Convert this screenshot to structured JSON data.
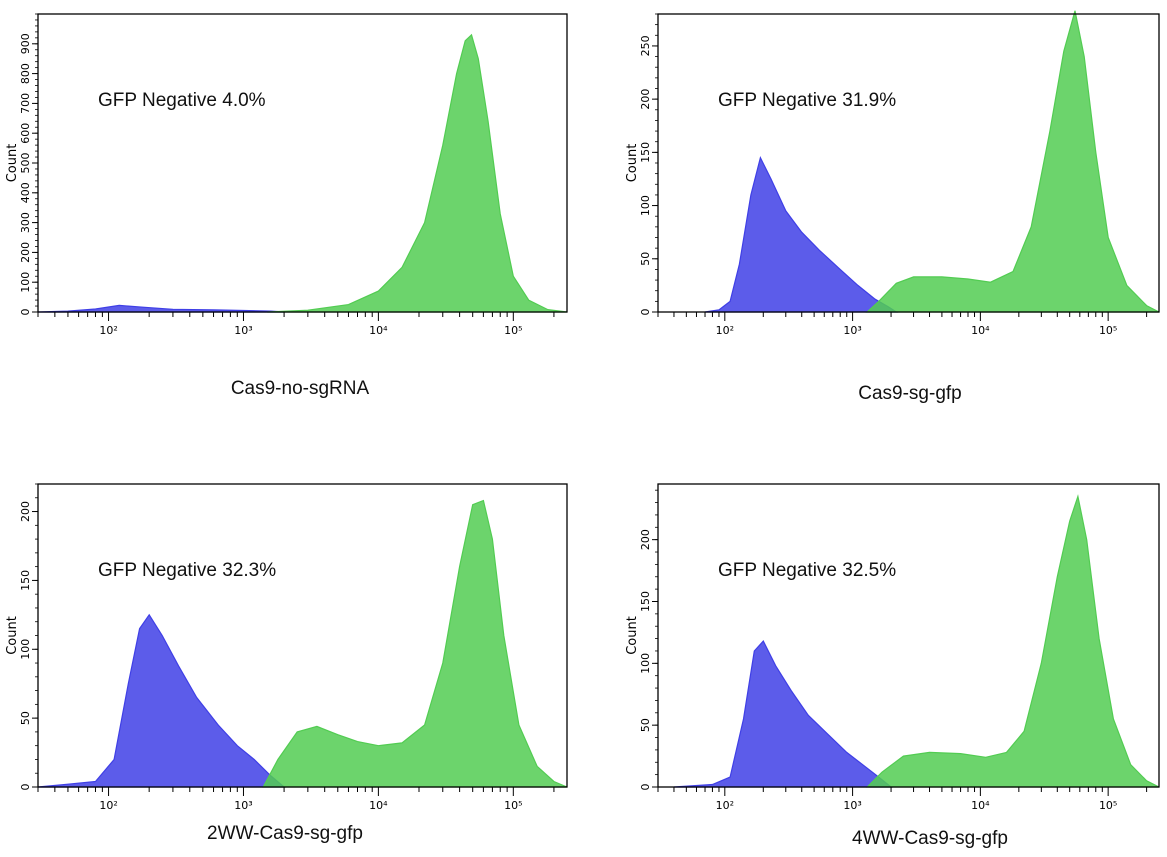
{
  "colors": {
    "gfp_negative": "#3f3fe6",
    "gfp_positive": "#52cc52",
    "axis": "#000000"
  },
  "chart_data": [
    {
      "type": "area",
      "title": "",
      "caption": "Cas9-no-sgRNA",
      "annotation": "GFP Negative  4.0%",
      "xlabel": "",
      "ylabel": "Count",
      "x_scale": "log",
      "xlim": [
        30,
        250000
      ],
      "ylim": [
        0,
        1000
      ],
      "y_ticks": [
        0,
        100,
        200,
        300,
        400,
        500,
        600,
        700,
        800,
        900
      ],
      "x_tick_labels": [
        "10²",
        "10³",
        "10⁴",
        "10⁵"
      ],
      "series": [
        {
          "color": "gfp_negative",
          "points": [
            [
              30,
              0
            ],
            [
              50,
              3
            ],
            [
              80,
              10
            ],
            [
              120,
              22
            ],
            [
              180,
              16
            ],
            [
              300,
              9
            ],
            [
              600,
              7
            ],
            [
              1000,
              5
            ],
            [
              1600,
              3
            ],
            [
              2000,
              0
            ]
          ]
        },
        {
          "color": "gfp_positive",
          "points": [
            [
              1500,
              0
            ],
            [
              3000,
              6
            ],
            [
              6000,
              25
            ],
            [
              10000,
              70
            ],
            [
              15000,
              150
            ],
            [
              22000,
              300
            ],
            [
              30000,
              560
            ],
            [
              38000,
              800
            ],
            [
              44000,
              910
            ],
            [
              49000,
              930
            ],
            [
              55000,
              850
            ],
            [
              65000,
              640
            ],
            [
              80000,
              330
            ],
            [
              100000,
              120
            ],
            [
              130000,
              40
            ],
            [
              180000,
              8
            ],
            [
              250000,
              0
            ]
          ]
        }
      ]
    },
    {
      "type": "area",
      "title": "",
      "caption": "Cas9-sg-gfp",
      "annotation": "GFP Negative  31.9%",
      "xlabel": "",
      "ylabel": "Count",
      "x_scale": "log",
      "xlim": [
        30,
        250000
      ],
      "ylim": [
        0,
        280
      ],
      "y_ticks": [
        0,
        50,
        100,
        150,
        200,
        250
      ],
      "x_tick_labels": [
        "10²",
        "10³",
        "10⁴",
        "10⁵"
      ],
      "series": [
        {
          "color": "gfp_negative",
          "points": [
            [
              70,
              0
            ],
            [
              90,
              2
            ],
            [
              110,
              10
            ],
            [
              130,
              45
            ],
            [
              160,
              110
            ],
            [
              190,
              145
            ],
            [
              230,
              125
            ],
            [
              300,
              95
            ],
            [
              400,
              75
            ],
            [
              550,
              58
            ],
            [
              800,
              40
            ],
            [
              1100,
              25
            ],
            [
              1500,
              12
            ],
            [
              1900,
              5
            ],
            [
              2200,
              0
            ]
          ]
        },
        {
          "color": "gfp_positive",
          "points": [
            [
              1300,
              0
            ],
            [
              1600,
              10
            ],
            [
              2200,
              27
            ],
            [
              3000,
              33
            ],
            [
              5000,
              33
            ],
            [
              8000,
              31
            ],
            [
              12000,
              28
            ],
            [
              18000,
              38
            ],
            [
              25000,
              80
            ],
            [
              35000,
              170
            ],
            [
              45000,
              245
            ],
            [
              55000,
              283
            ],
            [
              65000,
              240
            ],
            [
              80000,
              150
            ],
            [
              100000,
              70
            ],
            [
              140000,
              25
            ],
            [
              200000,
              6
            ],
            [
              250000,
              0
            ]
          ]
        }
      ]
    },
    {
      "type": "area",
      "title": "",
      "caption": "2WW-Cas9-sg-gfp",
      "annotation": "GFP Negative 32.3%",
      "xlabel": "",
      "ylabel": "Count",
      "x_scale": "log",
      "xlim": [
        30,
        250000
      ],
      "ylim": [
        0,
        220
      ],
      "y_ticks": [
        0,
        50,
        100,
        150,
        200
      ],
      "x_tick_labels": [
        "10²",
        "10³",
        "10⁴",
        "10⁵"
      ],
      "series": [
        {
          "color": "gfp_negative",
          "points": [
            [
              30,
              0
            ],
            [
              50,
              2
            ],
            [
              80,
              4
            ],
            [
              110,
              20
            ],
            [
              140,
              75
            ],
            [
              170,
              115
            ],
            [
              200,
              125
            ],
            [
              250,
              110
            ],
            [
              330,
              88
            ],
            [
              450,
              65
            ],
            [
              650,
              45
            ],
            [
              900,
              30
            ],
            [
              1200,
              20
            ],
            [
              1600,
              8
            ],
            [
              2000,
              0
            ]
          ]
        },
        {
          "color": "gfp_positive",
          "points": [
            [
              1400,
              0
            ],
            [
              1800,
              20
            ],
            [
              2500,
              40
            ],
            [
              3500,
              44
            ],
            [
              5000,
              38
            ],
            [
              7000,
              33
            ],
            [
              10000,
              30
            ],
            [
              15000,
              32
            ],
            [
              22000,
              45
            ],
            [
              30000,
              90
            ],
            [
              40000,
              160
            ],
            [
              50000,
              205
            ],
            [
              60000,
              208
            ],
            [
              70000,
              180
            ],
            [
              85000,
              110
            ],
            [
              110000,
              45
            ],
            [
              150000,
              15
            ],
            [
              200000,
              4
            ],
            [
              250000,
              0
            ]
          ]
        }
      ]
    },
    {
      "type": "area",
      "title": "",
      "caption": "4WW-Cas9-sg-gfp",
      "annotation": "GFP Negative  32.5%",
      "xlabel": "",
      "ylabel": "Count",
      "x_scale": "log",
      "xlim": [
        30,
        250000
      ],
      "ylim": [
        0,
        245
      ],
      "y_ticks": [
        0,
        50,
        100,
        150,
        200
      ],
      "x_tick_labels": [
        "10²",
        "10³",
        "10⁴",
        "10⁵"
      ],
      "series": [
        {
          "color": "gfp_negative",
          "points": [
            [
              40,
              0
            ],
            [
              80,
              2
            ],
            [
              110,
              8
            ],
            [
              140,
              55
            ],
            [
              170,
              110
            ],
            [
              200,
              118
            ],
            [
              250,
              98
            ],
            [
              330,
              78
            ],
            [
              450,
              58
            ],
            [
              650,
              42
            ],
            [
              900,
              28
            ],
            [
              1200,
              18
            ],
            [
              1600,
              8
            ],
            [
              2000,
              0
            ]
          ]
        },
        {
          "color": "gfp_positive",
          "points": [
            [
              1300,
              0
            ],
            [
              1700,
              12
            ],
            [
              2500,
              25
            ],
            [
              4000,
              28
            ],
            [
              7000,
              27
            ],
            [
              11000,
              24
            ],
            [
              16000,
              28
            ],
            [
              22000,
              45
            ],
            [
              30000,
              100
            ],
            [
              40000,
              170
            ],
            [
              50000,
              215
            ],
            [
              58000,
              235
            ],
            [
              68000,
              200
            ],
            [
              85000,
              120
            ],
            [
              110000,
              55
            ],
            [
              150000,
              18
            ],
            [
              200000,
              5
            ],
            [
              250000,
              0
            ]
          ]
        }
      ]
    }
  ]
}
